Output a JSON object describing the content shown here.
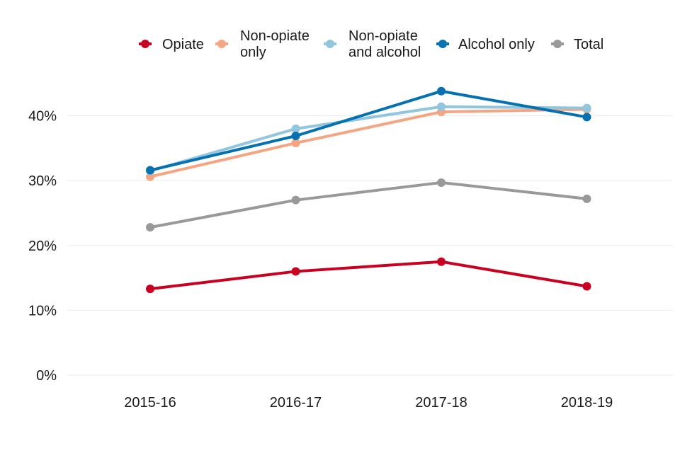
{
  "chart_data": {
    "type": "line",
    "title": "",
    "xlabel": "",
    "ylabel": "",
    "categories": [
      "2015-16",
      "2016-17",
      "2017-18",
      "2018-19"
    ],
    "ylim": [
      0,
      45
    ],
    "yticks": [
      0,
      10,
      20,
      30,
      40
    ],
    "ytick_labels": [
      "0%",
      "10%",
      "20%",
      "30%",
      "40%"
    ],
    "grid": "horizontal",
    "legend_position": "top",
    "series": [
      {
        "name": "Opiate",
        "label_lines": [
          "Opiate"
        ],
        "color": "#ca0020",
        "values": [
          13.3,
          16.0,
          17.5,
          13.7
        ]
      },
      {
        "name": "Non-opiate only",
        "label_lines": [
          "Non-opiate",
          "only"
        ],
        "color": "#f4a582",
        "values": [
          30.6,
          35.8,
          40.6,
          41.0
        ]
      },
      {
        "name": "Non-opiate and alcohol",
        "label_lines": [
          "Non-opiate",
          "and alcohol"
        ],
        "color": "#92c5de",
        "values": [
          31.5,
          38.0,
          41.4,
          41.2
        ]
      },
      {
        "name": "Alcohol only",
        "label_lines": [
          "Alcohol only"
        ],
        "color": "#0571b0",
        "values": [
          31.6,
          36.9,
          43.8,
          39.8
        ]
      },
      {
        "name": "Total",
        "label_lines": [
          "Total"
        ],
        "color": "#999999",
        "values": [
          22.8,
          27.0,
          29.7,
          27.2
        ]
      }
    ]
  }
}
